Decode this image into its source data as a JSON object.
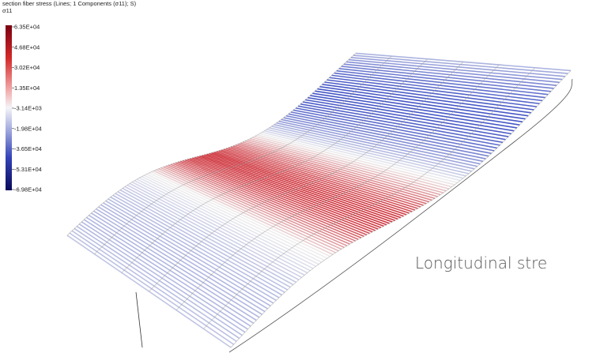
{
  "header": {
    "title": "section fiber stress (Lines; 1 Components (σ11); S)",
    "component": "σ11"
  },
  "legend": {
    "labels": [
      "6.35E+04",
      "4.68E+04",
      "3.02E+04",
      "1.35E+04",
      "-3.14E+03",
      "-1.98E+04",
      "-3.65E+04",
      "-5.31E+04",
      "-6.98E+04"
    ]
  },
  "caption": "Longitudinal stre"
}
